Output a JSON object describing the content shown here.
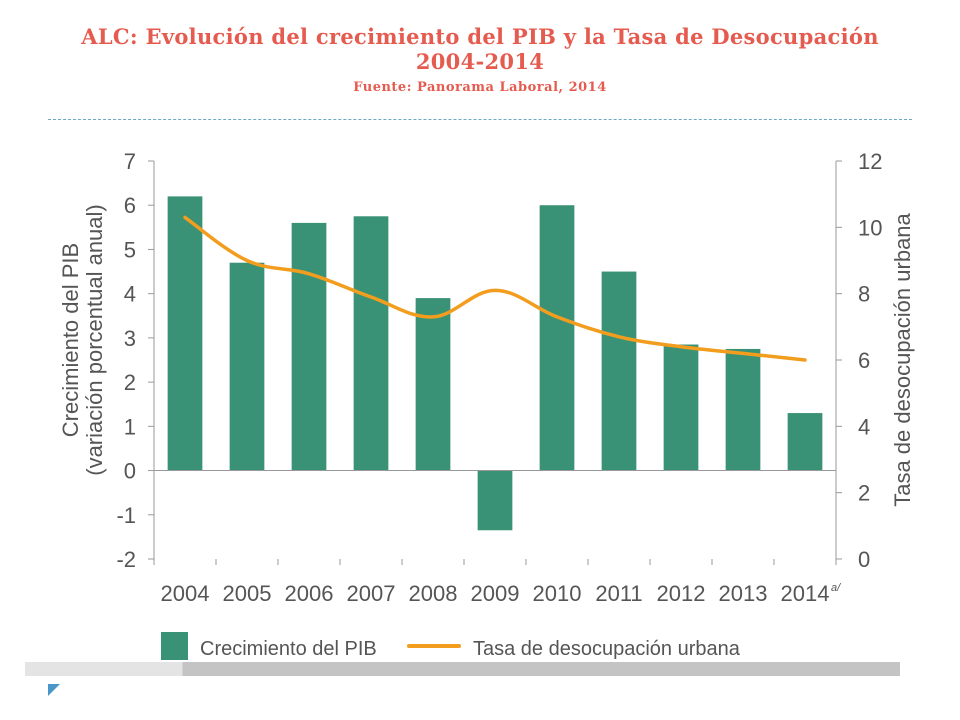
{
  "slide": {
    "title_line1": "ALC: Evolución del crecimiento del PIB y la Tasa de Desocupación",
    "title_line2": "2004-2014",
    "source": "Fuente: Panorama Laboral, 2014"
  },
  "colors": {
    "title": "#e55b4f",
    "bar": "#3a9276",
    "line": "#f29d1e",
    "axis_text": "#555555"
  },
  "chart_data": {
    "type": "bar+line",
    "categories": [
      "2004",
      "2005",
      "2006",
      "2007",
      "2008",
      "2009",
      "2010",
      "2011",
      "2012",
      "2013",
      "2014"
    ],
    "last_category_footnote": "a/",
    "series": [
      {
        "name": "Crecimiento del PIB",
        "type": "bar",
        "axis": "left",
        "values": [
          6.2,
          4.7,
          5.6,
          5.75,
          3.9,
          -1.35,
          6.0,
          4.5,
          2.85,
          2.75,
          1.3
        ]
      },
      {
        "name": "Tasa de desocupación urbana",
        "type": "line",
        "axis": "right",
        "values": [
          10.3,
          9.0,
          8.6,
          7.9,
          7.3,
          8.1,
          7.3,
          6.7,
          6.4,
          6.2,
          6.0
        ]
      }
    ],
    "left_axis": {
      "label_line1": "Crecimiento del PIB",
      "label_line2": "(variación porcentual anual)",
      "ylim": [
        -2,
        7
      ],
      "ticks": [
        "-2",
        "-1",
        "0",
        "1",
        "2",
        "3",
        "4",
        "5",
        "6",
        "7"
      ]
    },
    "right_axis": {
      "label": "Tasa de desocupación urbana",
      "ylim": [
        0,
        12
      ],
      "ticks": [
        "0",
        "2",
        "4",
        "6",
        "8",
        "10",
        "12"
      ]
    },
    "grid": false,
    "legend": {
      "position": "bottom",
      "labels": [
        "Crecimiento del PIB",
        "Tasa de desocupación urbana"
      ]
    }
  }
}
